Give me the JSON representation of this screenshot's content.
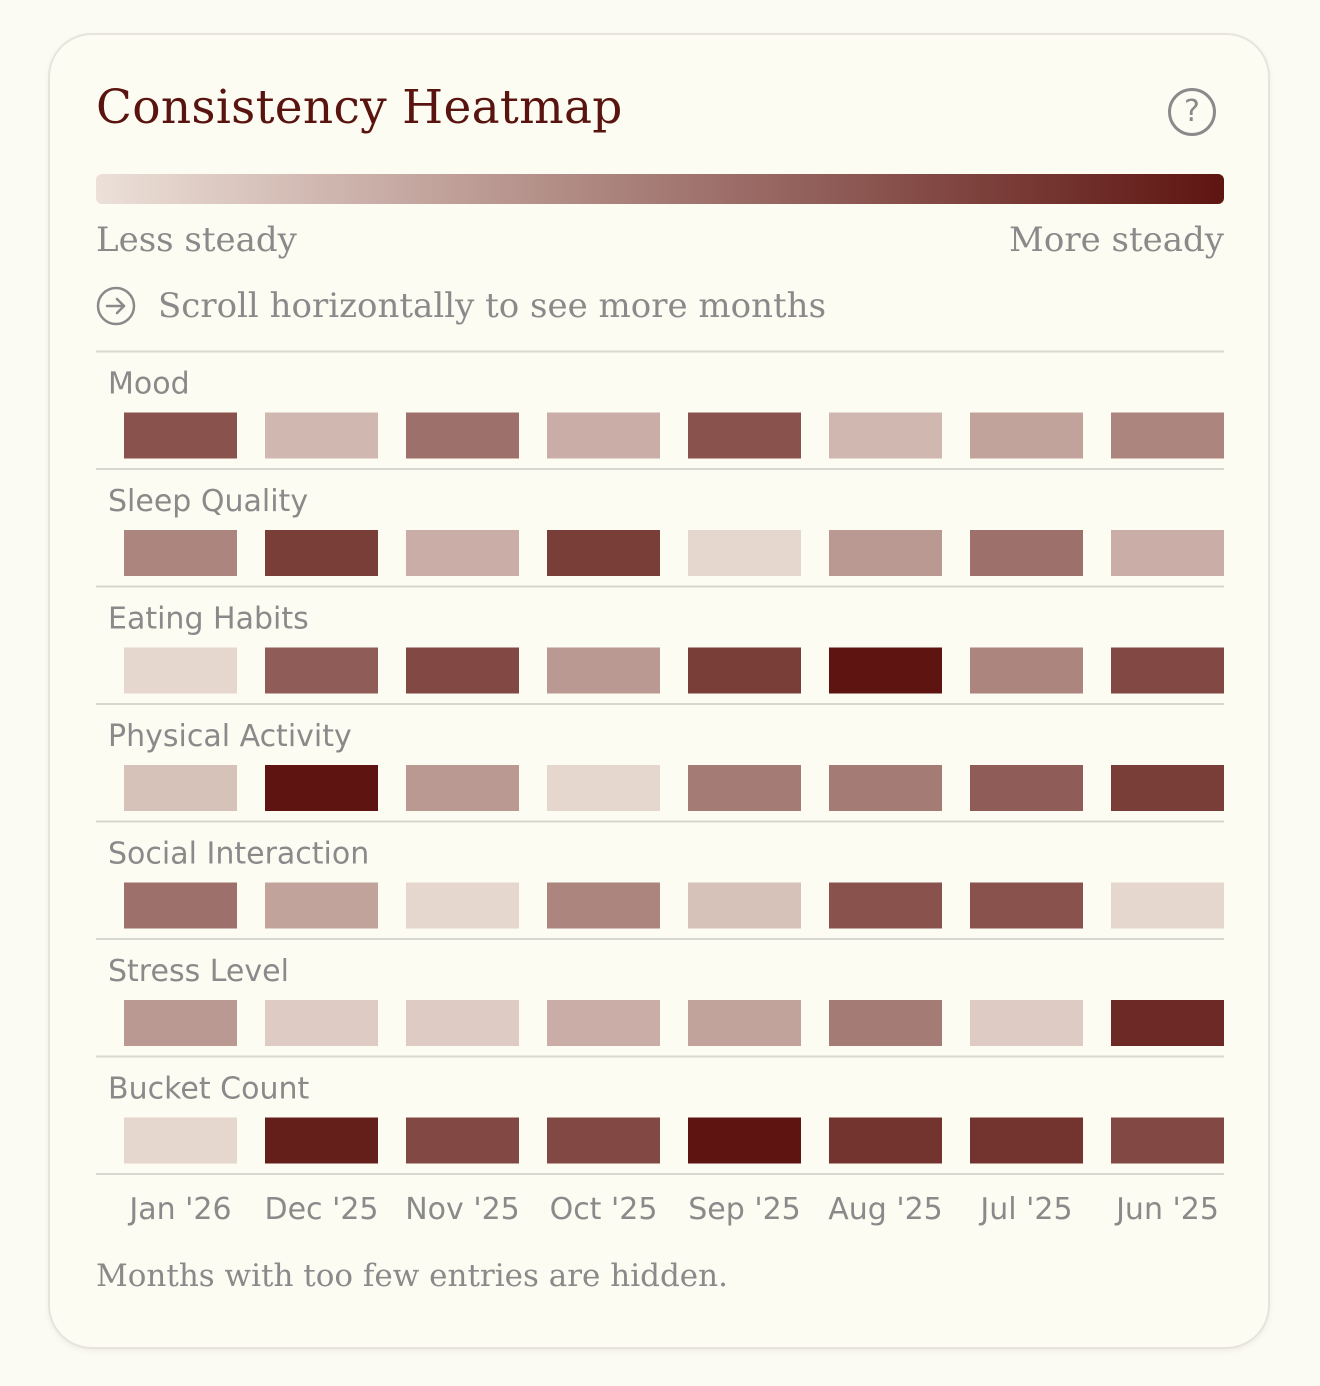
{
  "card": {
    "title": "Consistency Heatmap",
    "help_icon": "question-circle-icon",
    "help_glyph": "?",
    "scale": {
      "low_label": "Less steady",
      "high_label": "More steady",
      "low_color": "#ece0d8",
      "high_color": "#5e1511"
    },
    "scroll_hint": {
      "icon": "arrow-right-circle-icon",
      "text": "Scroll horizontally to see more months"
    },
    "footnote": "Months with too few entries are hidden."
  },
  "chart_data": {
    "type": "heatmap",
    "title": "Consistency Heatmap",
    "value_scale": "0 = less steady, 1 = more steady",
    "columns": [
      "Jan '26",
      "Dec '25",
      "Nov '25",
      "Oct '25",
      "Sep '25",
      "Aug '25",
      "Jul '25",
      "Jun '25"
    ],
    "rows": [
      {
        "name": "Mood",
        "values": [
          0.7,
          0.2,
          0.55,
          0.25,
          0.7,
          0.2,
          0.3,
          0.45
        ]
      },
      {
        "name": "Sleep Quality",
        "values": [
          0.45,
          0.8,
          0.25,
          0.8,
          0.05,
          0.35,
          0.55,
          0.25
        ]
      },
      {
        "name": "Eating Habits",
        "values": [
          0.05,
          0.65,
          0.75,
          0.35,
          0.8,
          1.0,
          0.45,
          0.75
        ]
      },
      {
        "name": "Physical Activity",
        "values": [
          0.15,
          1.0,
          0.35,
          0.05,
          0.5,
          0.5,
          0.65,
          0.8
        ]
      },
      {
        "name": "Social Interaction",
        "values": [
          0.55,
          0.3,
          0.05,
          0.45,
          0.15,
          0.7,
          0.7,
          0.05
        ]
      },
      {
        "name": "Stress Level",
        "values": [
          0.35,
          0.1,
          0.1,
          0.25,
          0.3,
          0.5,
          0.1,
          0.9
        ]
      },
      {
        "name": "Bucket Count",
        "values": [
          0.05,
          0.95,
          0.75,
          0.75,
          1.0,
          0.85,
          0.85,
          0.75
        ]
      }
    ]
  }
}
